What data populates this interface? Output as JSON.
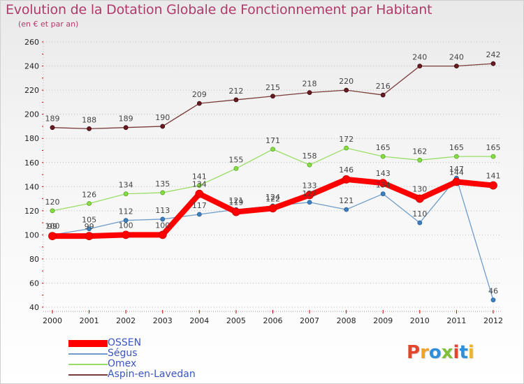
{
  "header": {
    "title": "Evolution de la Dotation Globale de Fonctionnement par Habitant",
    "subtitle": "(en € et par an)"
  },
  "logo": {
    "text": "Proxiti",
    "colors": [
      "#e2462d",
      "#f0a32a",
      "#2f8fd8",
      "#7fbf3a",
      "#e2462d",
      "#2f8fd8",
      "#e9b52c"
    ]
  },
  "chart_data": {
    "type": "line",
    "title": "Evolution de la Dotation Globale de Fonctionnement par Habitant",
    "subtitle": "(en € et par an)",
    "xlabel": "",
    "ylabel": "",
    "ylim": [
      40,
      260
    ],
    "yticks": [
      40,
      60,
      80,
      100,
      120,
      140,
      160,
      180,
      200,
      220,
      240,
      260
    ],
    "grid": "horizontal dotted",
    "legend": "bottom-left",
    "categories": [
      "2000",
      "2001",
      "2002",
      "2003",
      "2004",
      "2005",
      "2006",
      "2007",
      "2008",
      "2009",
      "2010",
      "2011",
      "2012"
    ],
    "series": [
      {
        "name": "OSSEN",
        "color": "#ff0000",
        "values": [
          99,
          99,
          100,
          100,
          134,
          119,
          122,
          133,
          146,
          143,
          130,
          144,
          141
        ],
        "labels": [
          "99",
          "99",
          "100",
          "100",
          "134",
          "119",
          "122",
          "133",
          "146",
          "143",
          "130",
          "144",
          "141"
        ]
      },
      {
        "name": "Ségus",
        "color": "#6e9bc8",
        "values": [
          100,
          105,
          112,
          113,
          117,
          121,
          124,
          127,
          121,
          134,
          110,
          147,
          46
        ],
        "labels": [
          "100",
          "105",
          "112",
          "113",
          "117",
          "121",
          "124",
          "127",
          "121",
          "134",
          "110",
          "147",
          "46"
        ]
      },
      {
        "name": "Omex",
        "color": "#99dd66",
        "values": [
          120,
          126,
          134,
          135,
          141,
          155,
          171,
          158,
          172,
          165,
          162,
          165,
          165
        ],
        "labels": [
          "120",
          "126",
          "134",
          "135",
          "141",
          "155",
          "171",
          "158",
          "172",
          "165",
          "162",
          "165",
          "165"
        ]
      },
      {
        "name": "Aspin-en-Lavedan",
        "color": "#7a3a3a",
        "values": [
          189,
          188,
          189,
          190,
          209,
          212,
          215,
          218,
          220,
          216,
          240,
          240,
          242
        ],
        "labels": [
          "189",
          "188",
          "189",
          "190",
          "209",
          "212",
          "215",
          "218",
          "220",
          "216",
          "240",
          "240",
          "242"
        ]
      }
    ]
  }
}
